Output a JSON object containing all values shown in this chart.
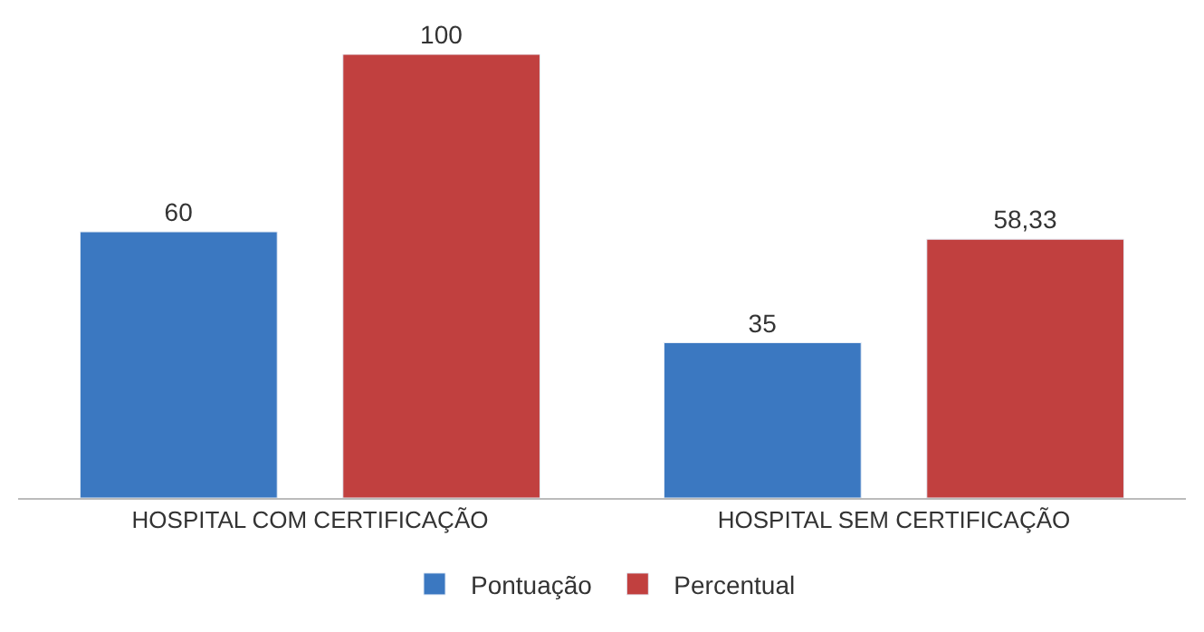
{
  "chart_data": {
    "type": "bar",
    "categories": [
      "HOSPITAL COM CERTIFICAÇÃO",
      "HOSPITAL SEM CERTIFICAÇÃO"
    ],
    "series": [
      {
        "name": "Pontuação",
        "color": "#3b78c1",
        "values": [
          60,
          35
        ],
        "value_labels": [
          "60",
          "35"
        ]
      },
      {
        "name": "Percentual",
        "color": "#c1403f",
        "values": [
          100,
          58.33
        ],
        "value_labels": [
          "100",
          "58,33"
        ]
      }
    ],
    "legend": "bottom"
  }
}
